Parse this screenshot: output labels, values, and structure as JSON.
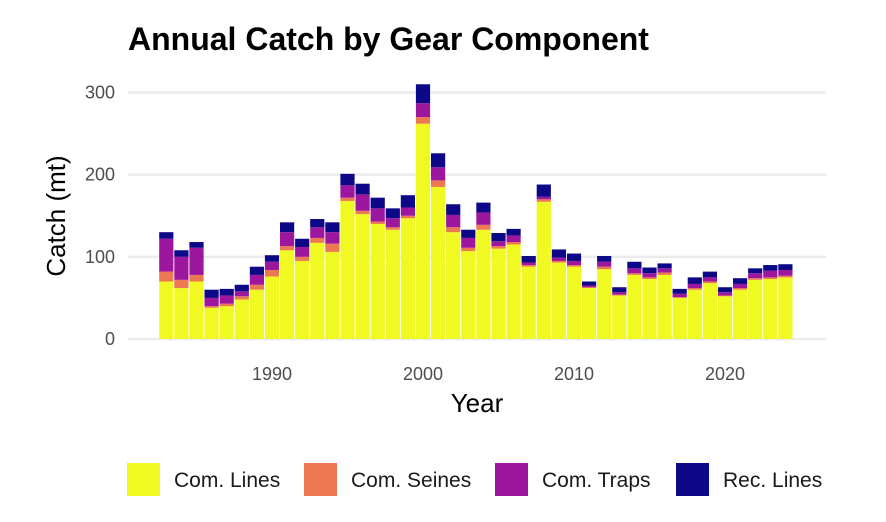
{
  "chart_data": {
    "type": "bar",
    "stacked": true,
    "title": "Annual Catch by Gear Component",
    "xlabel": "Year",
    "ylabel": "Catch (mt)",
    "xlim": [
      1982,
      2025
    ],
    "ylim": [
      0,
      310
    ],
    "x_ticks": [
      1990,
      2000,
      2010,
      2020
    ],
    "y_ticks": [
      0,
      100,
      200,
      300
    ],
    "grid": true,
    "legend_position": "bottom",
    "years": [
      1983,
      1984,
      1985,
      1986,
      1987,
      1988,
      1989,
      1990,
      1991,
      1992,
      1993,
      1994,
      1995,
      1996,
      1997,
      1998,
      1999,
      2000,
      2001,
      2002,
      2003,
      2004,
      2005,
      2006,
      2007,
      2008,
      2009,
      2010,
      2011,
      2012,
      2013,
      2014,
      2015,
      2016,
      2017,
      2018,
      2019,
      2020,
      2021,
      2022,
      2023,
      2024
    ],
    "series": [
      {
        "name": "Com. Lines",
        "color": "#f0f921",
        "values": [
          70,
          62,
          70,
          38,
          40,
          48,
          60,
          76,
          108,
          95,
          117,
          106,
          168,
          152,
          140,
          133,
          147,
          262,
          185,
          130,
          107,
          133,
          110,
          115,
          88,
          167,
          93,
          88,
          62,
          85,
          53,
          78,
          73,
          78,
          50,
          60,
          68,
          52,
          60,
          72,
          73,
          75
        ]
      },
      {
        "name": "Com. Seines",
        "color": "#ed7953",
        "values": [
          12,
          10,
          8,
          2,
          3,
          4,
          6,
          8,
          5,
          5,
          6,
          10,
          4,
          4,
          3,
          3,
          3,
          8,
          8,
          6,
          4,
          6,
          3,
          3,
          2,
          3,
          2,
          2,
          1,
          3,
          1,
          2,
          2,
          3,
          1,
          2,
          2,
          1,
          2,
          2,
          2,
          2
        ]
      },
      {
        "name": "Com. Traps",
        "color": "#9c179e",
        "values": [
          40,
          28,
          33,
          10,
          10,
          6,
          12,
          10,
          17,
          12,
          13,
          14,
          15,
          20,
          16,
          11,
          10,
          17,
          16,
          15,
          12,
          15,
          6,
          8,
          3,
          3,
          4,
          5,
          2,
          6,
          3,
          6,
          5,
          5,
          4,
          5,
          5,
          4,
          5,
          6,
          8,
          7
        ]
      },
      {
        "name": "Rec. Lines",
        "color": "#0d0887",
        "values": [
          8,
          8,
          7,
          10,
          8,
          8,
          10,
          8,
          12,
          10,
          10,
          12,
          14,
          13,
          13,
          12,
          15,
          23,
          17,
          13,
          10,
          12,
          10,
          8,
          8,
          15,
          10,
          9,
          5,
          7,
          6,
          8,
          7,
          6,
          6,
          8,
          7,
          6,
          7,
          6,
          7,
          7
        ]
      }
    ]
  }
}
